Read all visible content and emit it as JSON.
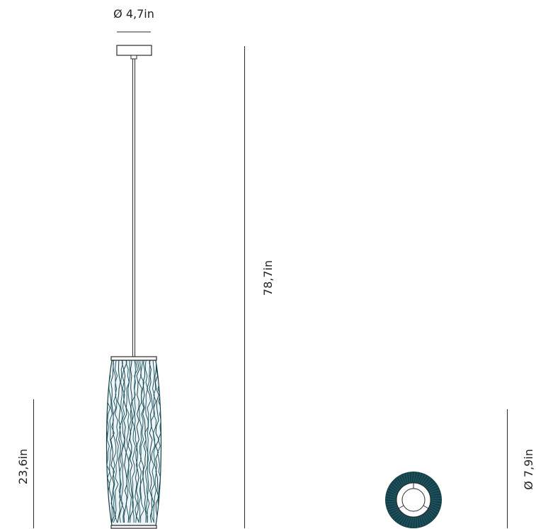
{
  "dimensions": {
    "canopy_diameter": "Ø 4,7in",
    "total_height": "78,7in",
    "shade_height": "23,6in",
    "shade_diameter": "Ø 7,9in"
  },
  "colors": {
    "line": "#2b2b2b",
    "shade_teal": "#1f5a66",
    "shade_dark": "#163e47"
  }
}
